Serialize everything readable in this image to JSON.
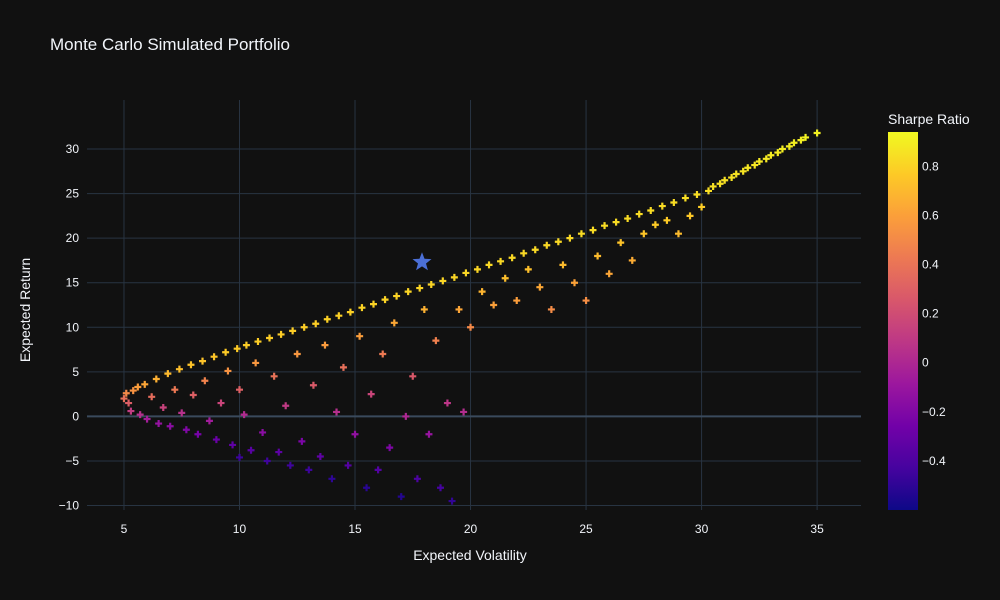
{
  "chart_data": {
    "type": "scatter",
    "title": "Monte Carlo Simulated Portfolio",
    "xlabel": "Expected Volatility",
    "ylabel": "Expected Return",
    "xlim": [
      3.4,
      36.9
    ],
    "ylim": [
      -10.5,
      35.5
    ],
    "x_ticks": [
      5,
      10,
      15,
      20,
      25,
      30,
      35
    ],
    "y_ticks": [
      -10,
      -5,
      0,
      5,
      10,
      15,
      20,
      25,
      30
    ],
    "grid": true,
    "marker": "cross",
    "colorbar": {
      "title": "Sharpe Ratio",
      "range": [
        -0.6,
        0.94
      ],
      "ticks": [
        -0.4,
        -0.2,
        0,
        0.2,
        0.4,
        0.6,
        0.8
      ],
      "tick_labels": [
        "−0.4",
        "−0.2",
        "0",
        "0.2",
        "0.4",
        "0.6",
        "0.8"
      ],
      "colorscale": [
        "#0d0887",
        "#46039f",
        "#7201a8",
        "#9c179e",
        "#bd3786",
        "#d8576b",
        "#ed7953",
        "#fb9f3a",
        "#fdca26",
        "#f0f921"
      ]
    },
    "highlight": {
      "marker": "star",
      "x": 17.9,
      "y": 17.3,
      "color": "#4b6fd6"
    },
    "series": [
      {
        "points": [
          [
            5.0,
            2.0,
            0.38
          ],
          [
            5.1,
            2.6,
            0.5
          ],
          [
            5.2,
            1.5,
            0.29
          ],
          [
            5.3,
            0.6,
            0.11
          ],
          [
            5.4,
            2.9,
            0.54
          ],
          [
            5.6,
            3.3,
            0.59
          ],
          [
            5.7,
            0.2,
            0.04
          ],
          [
            5.9,
            3.6,
            0.62
          ],
          [
            6.0,
            -0.3,
            -0.05
          ],
          [
            6.2,
            2.2,
            0.36
          ],
          [
            6.4,
            4.2,
            0.66
          ],
          [
            6.5,
            -0.8,
            -0.12
          ],
          [
            6.7,
            1.0,
            0.15
          ],
          [
            6.9,
            4.8,
            0.7
          ],
          [
            7.0,
            -1.1,
            -0.16
          ],
          [
            7.2,
            3.0,
            0.42
          ],
          [
            7.4,
            5.3,
            0.72
          ],
          [
            7.5,
            0.4,
            0.05
          ],
          [
            7.7,
            -1.5,
            -0.2
          ],
          [
            7.9,
            5.8,
            0.74
          ],
          [
            8.0,
            2.4,
            0.3
          ],
          [
            8.2,
            -2.0,
            -0.24
          ],
          [
            8.4,
            6.2,
            0.74
          ],
          [
            8.5,
            4.0,
            0.47
          ],
          [
            8.7,
            -0.5,
            -0.06
          ],
          [
            8.9,
            6.7,
            0.75
          ],
          [
            9.0,
            -2.6,
            -0.29
          ],
          [
            9.2,
            1.5,
            0.16
          ],
          [
            9.4,
            7.2,
            0.77
          ],
          [
            9.5,
            5.1,
            0.54
          ],
          [
            9.7,
            -3.2,
            -0.33
          ],
          [
            9.9,
            7.6,
            0.77
          ],
          [
            10.0,
            -4.6,
            -0.46
          ],
          [
            10.0,
            3.0,
            0.3
          ],
          [
            10.2,
            0.2,
            0.02
          ],
          [
            10.3,
            8.0,
            0.78
          ],
          [
            10.5,
            -3.8,
            -0.36
          ],
          [
            10.7,
            6.0,
            0.56
          ],
          [
            10.8,
            8.4,
            0.78
          ],
          [
            11.0,
            -1.8,
            -0.16
          ],
          [
            11.2,
            -5.0,
            -0.45
          ],
          [
            11.3,
            8.8,
            0.78
          ],
          [
            11.5,
            4.5,
            0.39
          ],
          [
            11.7,
            -4.0,
            -0.34
          ],
          [
            11.8,
            9.2,
            0.78
          ],
          [
            12.0,
            1.2,
            0.1
          ],
          [
            12.2,
            -5.5,
            -0.45
          ],
          [
            12.3,
            9.6,
            0.78
          ],
          [
            12.5,
            7.0,
            0.56
          ],
          [
            12.7,
            -2.8,
            -0.22
          ],
          [
            12.8,
            10.0,
            0.78
          ],
          [
            13.0,
            -6.0,
            -0.46
          ],
          [
            13.2,
            3.5,
            0.27
          ],
          [
            13.3,
            10.4,
            0.78
          ],
          [
            13.5,
            -4.5,
            -0.33
          ],
          [
            13.7,
            8.0,
            0.58
          ],
          [
            13.8,
            10.9,
            0.79
          ],
          [
            14.0,
            -7.0,
            -0.5
          ],
          [
            14.2,
            0.5,
            0.04
          ],
          [
            14.3,
            11.3,
            0.79
          ],
          [
            14.5,
            5.5,
            0.38
          ],
          [
            14.7,
            -5.5,
            -0.37
          ],
          [
            14.8,
            11.7,
            0.79
          ],
          [
            15.0,
            -2.0,
            -0.13
          ],
          [
            15.2,
            9.0,
            0.59
          ],
          [
            15.3,
            12.2,
            0.8
          ],
          [
            15.5,
            -8.0,
            -0.52
          ],
          [
            15.7,
            2.5,
            0.16
          ],
          [
            15.8,
            12.6,
            0.8
          ],
          [
            16.0,
            -6.0,
            -0.38
          ],
          [
            16.2,
            7.0,
            0.43
          ],
          [
            16.3,
            13.1,
            0.8
          ],
          [
            16.5,
            -3.5,
            -0.21
          ],
          [
            16.7,
            10.5,
            0.63
          ],
          [
            16.8,
            13.5,
            0.8
          ],
          [
            17.0,
            -9.0,
            -0.53
          ],
          [
            17.2,
            0.0,
            0.0
          ],
          [
            17.3,
            14.0,
            0.81
          ],
          [
            17.5,
            4.5,
            0.26
          ],
          [
            17.7,
            -7.0,
            -0.4
          ],
          [
            17.8,
            14.4,
            0.81
          ],
          [
            18.0,
            12.0,
            0.67
          ],
          [
            18.2,
            -2.0,
            -0.11
          ],
          [
            18.3,
            14.8,
            0.81
          ],
          [
            18.5,
            8.5,
            0.46
          ],
          [
            18.7,
            -8.0,
            -0.43
          ],
          [
            18.8,
            15.2,
            0.81
          ],
          [
            19.0,
            1.5,
            0.08
          ],
          [
            19.2,
            -9.5,
            -0.49
          ],
          [
            19.3,
            15.6,
            0.81
          ],
          [
            19.5,
            12.0,
            0.62
          ],
          [
            19.7,
            0.5,
            0.03
          ],
          [
            19.8,
            16.1,
            0.81
          ],
          [
            20.0,
            10.0,
            0.5
          ],
          [
            20.3,
            16.5,
            0.81
          ],
          [
            20.5,
            14.0,
            0.68
          ],
          [
            20.8,
            17.0,
            0.82
          ],
          [
            21.0,
            12.5,
            0.6
          ],
          [
            21.3,
            17.4,
            0.82
          ],
          [
            21.5,
            15.5,
            0.72
          ],
          [
            21.8,
            17.8,
            0.82
          ],
          [
            22.0,
            13.0,
            0.59
          ],
          [
            22.3,
            18.3,
            0.82
          ],
          [
            22.5,
            16.5,
            0.73
          ],
          [
            22.8,
            18.7,
            0.82
          ],
          [
            23.0,
            14.5,
            0.63
          ],
          [
            23.3,
            19.2,
            0.82
          ],
          [
            23.5,
            12.0,
            0.51
          ],
          [
            23.8,
            19.6,
            0.82
          ],
          [
            24.0,
            17.0,
            0.71
          ],
          [
            24.3,
            20.0,
            0.82
          ],
          [
            24.5,
            15.0,
            0.61
          ],
          [
            24.8,
            20.5,
            0.83
          ],
          [
            25.0,
            13.0,
            0.52
          ],
          [
            25.3,
            20.9,
            0.83
          ],
          [
            25.5,
            18.0,
            0.71
          ],
          [
            25.8,
            21.4,
            0.83
          ],
          [
            26.0,
            16.0,
            0.62
          ],
          [
            26.3,
            21.8,
            0.83
          ],
          [
            26.5,
            19.5,
            0.74
          ],
          [
            26.8,
            22.2,
            0.83
          ],
          [
            27.0,
            17.5,
            0.65
          ],
          [
            27.3,
            22.7,
            0.83
          ],
          [
            27.5,
            20.5,
            0.75
          ],
          [
            27.8,
            23.1,
            0.83
          ],
          [
            28.0,
            21.5,
            0.77
          ],
          [
            28.3,
            23.6,
            0.83
          ],
          [
            28.5,
            22.0,
            0.77
          ],
          [
            28.8,
            24.0,
            0.83
          ],
          [
            29.0,
            20.5,
            0.71
          ],
          [
            29.3,
            24.5,
            0.84
          ],
          [
            29.5,
            22.5,
            0.76
          ],
          [
            29.8,
            24.9,
            0.84
          ],
          [
            30.0,
            23.5,
            0.78
          ],
          [
            30.3,
            25.3,
            0.84
          ],
          [
            30.5,
            25.8,
            0.85
          ],
          [
            30.8,
            26.1,
            0.85
          ],
          [
            31.0,
            26.5,
            0.85
          ],
          [
            31.3,
            26.8,
            0.86
          ],
          [
            31.5,
            27.2,
            0.86
          ],
          [
            31.8,
            27.5,
            0.86
          ],
          [
            32.0,
            27.9,
            0.87
          ],
          [
            32.3,
            28.2,
            0.87
          ],
          [
            32.5,
            28.6,
            0.88
          ],
          [
            32.8,
            28.9,
            0.88
          ],
          [
            33.0,
            29.3,
            0.89
          ],
          [
            33.3,
            29.6,
            0.89
          ],
          [
            33.5,
            30.0,
            0.9
          ],
          [
            33.8,
            30.3,
            0.9
          ],
          [
            34.0,
            30.7,
            0.9
          ],
          [
            34.3,
            31.0,
            0.9
          ],
          [
            34.5,
            31.3,
            0.91
          ],
          [
            35.0,
            31.8,
            0.91
          ]
        ]
      }
    ]
  }
}
